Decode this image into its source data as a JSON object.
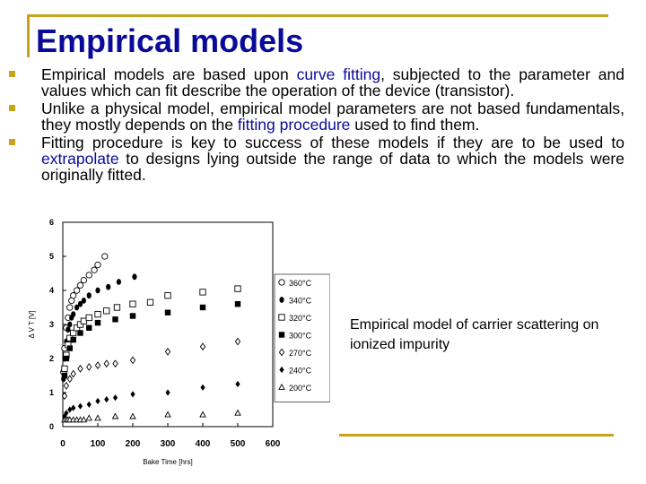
{
  "slide": {
    "title": "Empirical models",
    "bullets": [
      {
        "parts": [
          {
            "text": "Empirical models are based upon ",
            "hl": false
          },
          {
            "text": "curve fitting",
            "hl": true
          },
          {
            "text": ", subjected to the parameter and values which can fit describe the operation of the device (transistor).",
            "hl": false
          }
        ]
      },
      {
        "parts": [
          {
            "text": "Unlike a physical model, empirical model parameters are not based fundamentals, they mostly depends on the ",
            "hl": false
          },
          {
            "text": "fitting procedure",
            "hl": true
          },
          {
            "text": " used to find them.",
            "hl": false
          }
        ]
      },
      {
        "parts": [
          {
            "text": "Fitting procedure is key to success of these models if they are to be used to ",
            "hl": false
          },
          {
            "text": "extrapolate",
            "hl": true
          },
          {
            "text": " to designs lying outside the range of data to which the models were originally fitted.",
            "hl": false
          }
        ]
      }
    ],
    "caption": "Empirical model of carrier scattering on ionized impurity",
    "colors": {
      "accent": "#c8a21a",
      "title": "#0a0a9a",
      "highlight": "#0a0a9a"
    }
  },
  "chart_data": {
    "type": "scatter",
    "xlabel": "Bake Time [hrs]",
    "ylabel": "Δ V T [V]",
    "xlim": [
      0,
      600
    ],
    "ylim": [
      0,
      6
    ],
    "xticks": [
      0,
      100,
      200,
      300,
      400,
      500,
      600
    ],
    "yticks": [
      0,
      1,
      2,
      3,
      4,
      5,
      6
    ],
    "legend_position": "right-inside",
    "grid": false,
    "series": [
      {
        "name": "360°C",
        "marker": "circle-open",
        "x": [
          2,
          5,
          10,
          15,
          20,
          25,
          30,
          40,
          50,
          60,
          75,
          90,
          100,
          120
        ],
        "y": [
          1.6,
          2.3,
          2.9,
          3.2,
          3.5,
          3.7,
          3.85,
          4.0,
          4.15,
          4.3,
          4.45,
          4.6,
          4.75,
          5.0
        ]
      },
      {
        "name": "340°C",
        "marker": "ellipse-filled",
        "x": [
          2,
          5,
          10,
          15,
          20,
          25,
          30,
          40,
          50,
          60,
          75,
          100,
          130,
          160,
          205
        ],
        "y": [
          1.4,
          2.0,
          2.5,
          2.85,
          3.0,
          3.2,
          3.3,
          3.5,
          3.6,
          3.7,
          3.85,
          4.0,
          4.1,
          4.25,
          4.4
        ]
      },
      {
        "name": "320°C",
        "marker": "square-open",
        "x": [
          5,
          10,
          15,
          20,
          30,
          40,
          50,
          60,
          75,
          100,
          125,
          155,
          200,
          250,
          300,
          400,
          500
        ],
        "y": [
          1.7,
          2.1,
          2.4,
          2.6,
          2.75,
          2.9,
          3.0,
          3.1,
          3.2,
          3.3,
          3.4,
          3.5,
          3.6,
          3.65,
          3.85,
          3.95,
          4.05
        ]
      },
      {
        "name": "300°C",
        "marker": "square-filled",
        "x": [
          5,
          10,
          20,
          30,
          50,
          75,
          100,
          150,
          200,
          300,
          400,
          500
        ],
        "y": [
          1.5,
          2.0,
          2.3,
          2.55,
          2.75,
          2.9,
          3.05,
          3.15,
          3.25,
          3.35,
          3.5,
          3.6
        ]
      },
      {
        "name": "270°C",
        "marker": "diamond-open",
        "x": [
          5,
          10,
          20,
          30,
          50,
          75,
          100,
          125,
          150,
          200,
          300,
          400,
          500
        ],
        "y": [
          0.9,
          1.2,
          1.4,
          1.55,
          1.7,
          1.75,
          1.8,
          1.85,
          1.85,
          1.95,
          2.2,
          2.35,
          2.5
        ]
      },
      {
        "name": "240°C",
        "marker": "diamond-filled",
        "x": [
          5,
          10,
          20,
          30,
          50,
          75,
          100,
          125,
          150,
          200,
          300,
          400,
          500
        ],
        "y": [
          0.3,
          0.4,
          0.5,
          0.55,
          0.6,
          0.65,
          0.75,
          0.8,
          0.85,
          0.95,
          1.0,
          1.15,
          1.25
        ]
      },
      {
        "name": "200°C",
        "marker": "triangle-open",
        "x": [
          5,
          10,
          15,
          20,
          30,
          40,
          50,
          60,
          75,
          100,
          150,
          200,
          300,
          400,
          500
        ],
        "y": [
          0.2,
          0.2,
          0.2,
          0.2,
          0.2,
          0.2,
          0.2,
          0.2,
          0.25,
          0.25,
          0.3,
          0.3,
          0.35,
          0.35,
          0.4
        ]
      }
    ]
  }
}
